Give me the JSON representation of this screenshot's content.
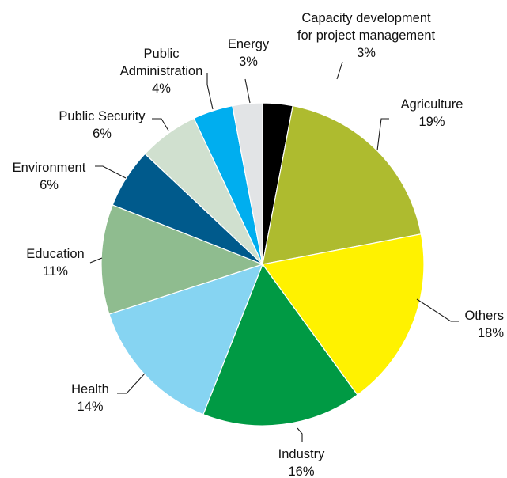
{
  "chart_data": {
    "type": "pie",
    "title": "",
    "unit": "%",
    "slices": [
      {
        "name": "Capacity development for project management",
        "label_lines": [
          "Capacity development",
          "for project management"
        ],
        "value": 3,
        "value_label": "3%",
        "color": "#000000"
      },
      {
        "name": "Agriculture",
        "label_lines": [
          "Agriculture"
        ],
        "value": 19,
        "value_label": "19%",
        "color": "#aebb2f"
      },
      {
        "name": "Others",
        "label_lines": [
          "Others"
        ],
        "value": 18,
        "value_label": "18%",
        "color": "#fff200"
      },
      {
        "name": "Industry",
        "label_lines": [
          "Industry"
        ],
        "value": 16,
        "value_label": "16%",
        "color": "#009a44"
      },
      {
        "name": "Health",
        "label_lines": [
          "Health"
        ],
        "value": 14,
        "value_label": "14%",
        "color": "#86d4f2"
      },
      {
        "name": "Education",
        "label_lines": [
          "Education"
        ],
        "value": 11,
        "value_label": "11%",
        "color": "#8fbc8f"
      },
      {
        "name": "Environment",
        "label_lines": [
          "Environment"
        ],
        "value": 6,
        "value_label": "6%",
        "color": "#005a8c"
      },
      {
        "name": "Public Security",
        "label_lines": [
          "Public Security"
        ],
        "value": 6,
        "value_label": "6%",
        "color": "#d0e0cf"
      },
      {
        "name": "Public Administration",
        "label_lines": [
          "Public",
          "Administration"
        ],
        "value": 4,
        "value_label": "4%",
        "color": "#00aeef"
      },
      {
        "name": "Energy",
        "label_lines": [
          "Energy"
        ],
        "value": 3,
        "value_label": "3%",
        "color": "#e2e4e6"
      }
    ]
  }
}
